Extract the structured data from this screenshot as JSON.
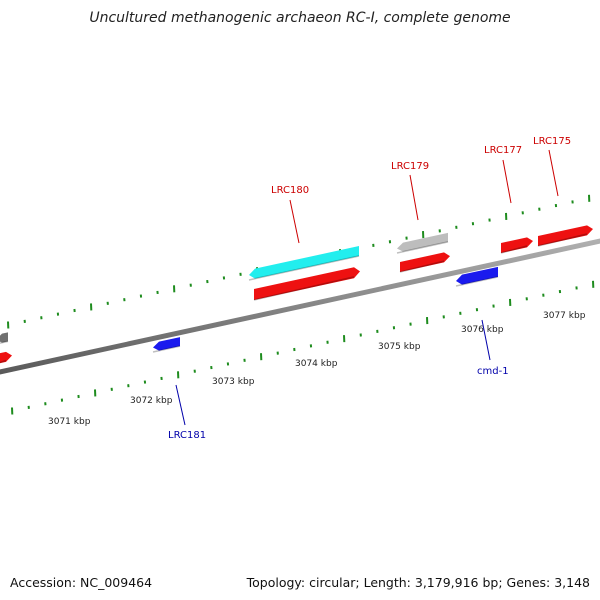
{
  "title": "Uncultured methanogenic archaeon RC-I, complete genome",
  "footer": {
    "accession": "Accession: NC_009464",
    "summary": "Topology: circular; Length: 3,179,916 bp; Genes: 3,148"
  },
  "colors": {
    "gene_red": "#ee1111",
    "gene_blue": "#1a1aee",
    "gene_cyan": "#22eeee",
    "gene_grey": "#bdbdbd",
    "gene_darkgrey": "#707070",
    "backbone": "#808080",
    "tick": "#1e8c1e",
    "label_red": "#cc0000",
    "label_blue": "#0000aa"
  },
  "scale_labels": [
    "3071 kbp",
    "3072 kbp",
    "3073 kbp",
    "3074 kbp",
    "3075 kbp",
    "3076 kbp",
    "3077 kbp"
  ],
  "gene_labels": [
    {
      "id": "LRC180",
      "strand": "plus"
    },
    {
      "id": "LRC179",
      "strand": "plus"
    },
    {
      "id": "LRC177",
      "strand": "plus"
    },
    {
      "id": "LRC175",
      "strand": "plus"
    },
    {
      "id": "LRC181",
      "strand": "minus"
    },
    {
      "id": "cmd-1",
      "strand": "minus"
    }
  ]
}
